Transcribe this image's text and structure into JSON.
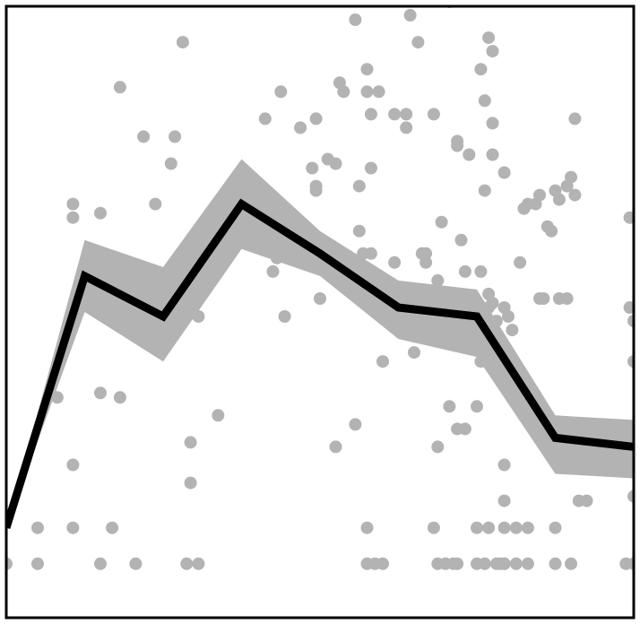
{
  "chart_data": {
    "type": "line",
    "title": "",
    "xlabel": "",
    "ylabel": "",
    "grid": false,
    "legend": "none",
    "xlim": [
      0,
      8
    ],
    "ylim": [
      0,
      6.8
    ],
    "colors": {
      "points": "#b3b3b3",
      "band": "#b3b3b3",
      "line": "#000000",
      "frame": "#000000",
      "background": "#ffffff"
    },
    "series": [
      {
        "kind": "line",
        "x": [
          0,
          1,
          2,
          3,
          4,
          5,
          6,
          7,
          8
        ],
        "y": [
          1.0,
          3.8,
          3.35,
          4.6,
          4.05,
          3.45,
          3.35,
          2.0,
          1.9
        ]
      },
      {
        "kind": "band",
        "x": [
          0,
          1,
          2,
          3,
          4,
          5,
          6,
          7,
          8
        ],
        "lower": [
          1.0,
          3.4,
          2.85,
          4.1,
          3.8,
          3.1,
          2.9,
          1.6,
          1.55
        ],
        "upper": [
          1.0,
          4.2,
          3.9,
          5.1,
          4.3,
          3.75,
          3.65,
          2.25,
          2.2
        ]
      },
      {
        "kind": "scatter",
        "points": [
          [
            0.0,
            0.6
          ],
          [
            0.4,
            0.6
          ],
          [
            0.4,
            1.0
          ],
          [
            0.65,
            2.45
          ],
          [
            0.85,
            1.7
          ],
          [
            0.85,
            1.0
          ],
          [
            0.85,
            4.45
          ],
          [
            0.85,
            4.6
          ],
          [
            1.2,
            2.5
          ],
          [
            1.2,
            4.5
          ],
          [
            1.2,
            0.6
          ],
          [
            1.35,
            1.0
          ],
          [
            1.45,
            2.45
          ],
          [
            1.45,
            5.9
          ],
          [
            1.65,
            0.6
          ],
          [
            1.75,
            5.35
          ],
          [
            1.9,
            4.6
          ],
          [
            2.1,
            5.05
          ],
          [
            2.15,
            5.35
          ],
          [
            2.25,
            6.4
          ],
          [
            2.3,
            0.6
          ],
          [
            2.35,
            1.5
          ],
          [
            2.35,
            1.95
          ],
          [
            2.45,
            0.6
          ],
          [
            2.45,
            3.35
          ],
          [
            2.7,
            2.25
          ],
          [
            3.3,
            5.55
          ],
          [
            3.4,
            3.85
          ],
          [
            3.45,
            4.0
          ],
          [
            3.5,
            5.85
          ],
          [
            3.55,
            3.35
          ],
          [
            3.75,
            5.45
          ],
          [
            3.9,
            5.0
          ],
          [
            3.95,
            5.55
          ],
          [
            3.95,
            4.75
          ],
          [
            3.95,
            4.8
          ],
          [
            4.0,
            3.55
          ],
          [
            4.1,
            5.1
          ],
          [
            4.2,
            5.05
          ],
          [
            4.2,
            1.9
          ],
          [
            4.25,
            5.95
          ],
          [
            4.3,
            5.85
          ],
          [
            4.45,
            6.65
          ],
          [
            4.45,
            2.15
          ],
          [
            4.5,
            4.8
          ],
          [
            4.5,
            4.3
          ],
          [
            4.55,
            4.05
          ],
          [
            4.6,
            6.1
          ],
          [
            4.6,
            5.85
          ],
          [
            4.6,
            1.0
          ],
          [
            4.6,
            0.6
          ],
          [
            4.65,
            4.05
          ],
          [
            4.65,
            5.0
          ],
          [
            4.65,
            5.6
          ],
          [
            4.7,
            0.6
          ],
          [
            4.75,
            5.85
          ],
          [
            4.8,
            0.6
          ],
          [
            4.8,
            2.85
          ],
          [
            4.95,
            5.6
          ],
          [
            4.95,
            3.95
          ],
          [
            5.1,
            5.45
          ],
          [
            5.1,
            5.6
          ],
          [
            5.15,
            6.7
          ],
          [
            5.2,
            2.95
          ],
          [
            5.25,
            6.4
          ],
          [
            5.3,
            4.05
          ],
          [
            5.35,
            3.95
          ],
          [
            5.35,
            4.05
          ],
          [
            5.45,
            1.0
          ],
          [
            5.45,
            5.6
          ],
          [
            5.5,
            3.75
          ],
          [
            5.5,
            0.6
          ],
          [
            5.5,
            1.9
          ],
          [
            5.55,
            4.4
          ],
          [
            5.65,
            6.85
          ],
          [
            5.6,
            0.6
          ],
          [
            5.65,
            2.35
          ],
          [
            5.7,
            0.6
          ],
          [
            5.7,
            3.4
          ],
          [
            5.75,
            5.3
          ],
          [
            5.75,
            5.25
          ],
          [
            5.75,
            2.1
          ],
          [
            5.75,
            0.6
          ],
          [
            5.8,
            4.2
          ],
          [
            5.85,
            2.1
          ],
          [
            5.85,
            3.85
          ],
          [
            5.9,
            5.15
          ],
          [
            6.0,
            0.6
          ],
          [
            6.0,
            2.35
          ],
          [
            6.0,
            1.0
          ],
          [
            6.05,
            2.85
          ],
          [
            6.05,
            6.1
          ],
          [
            6.05,
            3.85
          ],
          [
            6.1,
            0.6
          ],
          [
            6.1,
            5.75
          ],
          [
            6.1,
            4.75
          ],
          [
            6.15,
            3.6
          ],
          [
            6.15,
            3.45
          ],
          [
            6.15,
            1.0
          ],
          [
            6.15,
            6.45
          ],
          [
            6.2,
            5.15
          ],
          [
            6.2,
            6.3
          ],
          [
            6.2,
            5.5
          ],
          [
            6.2,
            3.5
          ],
          [
            6.25,
            0.6
          ],
          [
            6.25,
            3.3
          ],
          [
            6.3,
            0.6
          ],
          [
            6.35,
            1.3
          ],
          [
            6.35,
            0.6
          ],
          [
            6.35,
            1.7
          ],
          [
            6.35,
            1.0
          ],
          [
            6.35,
            3.45
          ],
          [
            6.35,
            4.95
          ],
          [
            6.35,
            0.6
          ],
          [
            6.4,
            3.35
          ],
          [
            6.45,
            3.2
          ],
          [
            6.5,
            1.0
          ],
          [
            6.5,
            0.6
          ],
          [
            6.55,
            3.95
          ],
          [
            6.6,
            4.55
          ],
          [
            6.65,
            1.0
          ],
          [
            6.65,
            4.6
          ],
          [
            6.65,
            0.6
          ],
          [
            6.75,
            4.6
          ],
          [
            6.8,
            4.7
          ],
          [
            6.8,
            3.55
          ],
          [
            6.85,
            3.55
          ],
          [
            6.9,
            4.35
          ],
          [
            6.95,
            4.3
          ],
          [
            7.0,
            2.1
          ],
          [
            7.0,
            4.75
          ],
          [
            7.0,
            1.0
          ],
          [
            7.05,
            3.55
          ],
          [
            7.05,
            4.65
          ],
          [
            7.15,
            3.55
          ],
          [
            7.15,
            4.8
          ],
          [
            7.2,
            0.6
          ],
          [
            7.2,
            4.9
          ],
          [
            7.25,
            4.7
          ],
          [
            7.25,
            5.55
          ],
          [
            7.3,
            1.3
          ],
          [
            7.4,
            1.3
          ],
          [
            7.9,
            0.6
          ],
          [
            7.95,
            4.45
          ],
          [
            7.95,
            3.45
          ],
          [
            8.0,
            3.3
          ],
          [
            8.0,
            1.35
          ],
          [
            8.0,
            2.85
          ],
          [
            8.0,
            0.6
          ],
          [
            7.0,
            0.6
          ]
        ]
      }
    ]
  }
}
